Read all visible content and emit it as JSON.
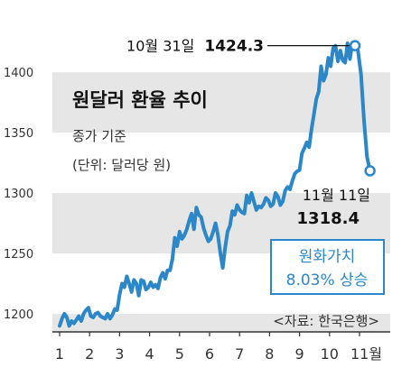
{
  "chart_data": {
    "type": "line",
    "title": "원달러 환율 추이",
    "subtitle": "종가 기준",
    "unit_note": "(단위: 달러당 원)",
    "source": "<자료: 한국은행>",
    "ylim": [
      1185,
      1430
    ],
    "y_ticks": [
      1200,
      1250,
      1300,
      1350,
      1400
    ],
    "y_tick_labels": [
      "1200",
      "1250",
      "1300",
      "1350",
      "1400"
    ],
    "x_ticks": [
      1,
      2,
      3,
      4,
      5,
      6,
      7,
      8,
      9,
      10,
      11
    ],
    "x_tick_labels": [
      "1",
      "2",
      "3",
      "4",
      "5",
      "6",
      "7",
      "8",
      "9",
      "10",
      "11월"
    ],
    "grid": "horizontal bands",
    "color": "#2b87c8",
    "series": [
      {
        "x": [
          1.0,
          1.08,
          1.16,
          1.24,
          1.32,
          1.4,
          1.48,
          1.56,
          1.64,
          1.72,
          1.8,
          1.88,
          1.96,
          2.04,
          2.12,
          2.2,
          2.28,
          2.36,
          2.44,
          2.52,
          2.6,
          2.68,
          2.76,
          2.84,
          2.92,
          3.0,
          3.08,
          3.16,
          3.24,
          3.32,
          3.4,
          3.48,
          3.56,
          3.64,
          3.72,
          3.8,
          3.88,
          3.96,
          4.04,
          4.12,
          4.2,
          4.28,
          4.36,
          4.44,
          4.52,
          4.6,
          4.68,
          4.76,
          4.84,
          4.92,
          5.0,
          5.08,
          5.16,
          5.24,
          5.32,
          5.4,
          5.48,
          5.56,
          5.64,
          5.72,
          5.8,
          5.88,
          5.96,
          6.04,
          6.12,
          6.2,
          6.28,
          6.36,
          6.44,
          6.52,
          6.6,
          6.68,
          6.76,
          6.84,
          6.92,
          7.0,
          7.08,
          7.16,
          7.24,
          7.32,
          7.4,
          7.48,
          7.56,
          7.64,
          7.72,
          7.8,
          7.88,
          7.96,
          8.04,
          8.12,
          8.2,
          8.28,
          8.36,
          8.44,
          8.52,
          8.6,
          8.68,
          8.76,
          8.84,
          8.92,
          9.0,
          9.08,
          9.16,
          9.24,
          9.32,
          9.4,
          9.48,
          9.56,
          9.64,
          9.72,
          9.8,
          9.88,
          9.96,
          10.04,
          10.12,
          10.2,
          10.28,
          10.36,
          10.44,
          10.52,
          10.6,
          10.68,
          10.75,
          10.85,
          10.95,
          11.05,
          11.15,
          11.25,
          11.35
        ],
        "y": [
          1190,
          1196,
          1200,
          1197,
          1190,
          1194,
          1192,
          1195,
          1198,
          1194,
          1200,
          1203,
          1205,
          1198,
          1197,
          1200,
          1201,
          1198,
          1197,
          1196,
          1200,
          1196,
          1199,
          1204,
          1203,
          1216,
          1225,
          1222,
          1231,
          1225,
          1218,
          1228,
          1225,
          1215,
          1228,
          1227,
          1220,
          1222,
          1226,
          1222,
          1224,
          1221,
          1230,
          1234,
          1229,
          1236,
          1236,
          1245,
          1263,
          1256,
          1268,
          1262,
          1265,
          1270,
          1277,
          1283,
          1270,
          1288,
          1282,
          1280,
          1271,
          1265,
          1260,
          1262,
          1268,
          1275,
          1265,
          1250,
          1238,
          1255,
          1268,
          1273,
          1285,
          1282,
          1290,
          1286,
          1284,
          1283,
          1298,
          1292,
          1300,
          1293,
          1286,
          1289,
          1288,
          1291,
          1296,
          1294,
          1289,
          1291,
          1300,
          1297,
          1290,
          1293,
          1302,
          1305,
          1303,
          1310,
          1316,
          1318,
          1319,
          1333,
          1337,
          1342,
          1338,
          1353,
          1365,
          1378,
          1384,
          1405,
          1393,
          1398,
          1412,
          1405,
          1420,
          1422,
          1409,
          1418,
          1410,
          1408,
          1424,
          1411,
          1422,
          1424.3,
          1418,
          1398,
          1360,
          1330,
          1318.4
        ]
      }
    ],
    "annotations": {
      "peak_date": "10월 31일",
      "peak_value": "1424.3",
      "end_date": "11월 11일",
      "end_value": "1318.4",
      "box_line1": "원화가치",
      "box_line2": "8.03% 상승"
    }
  }
}
